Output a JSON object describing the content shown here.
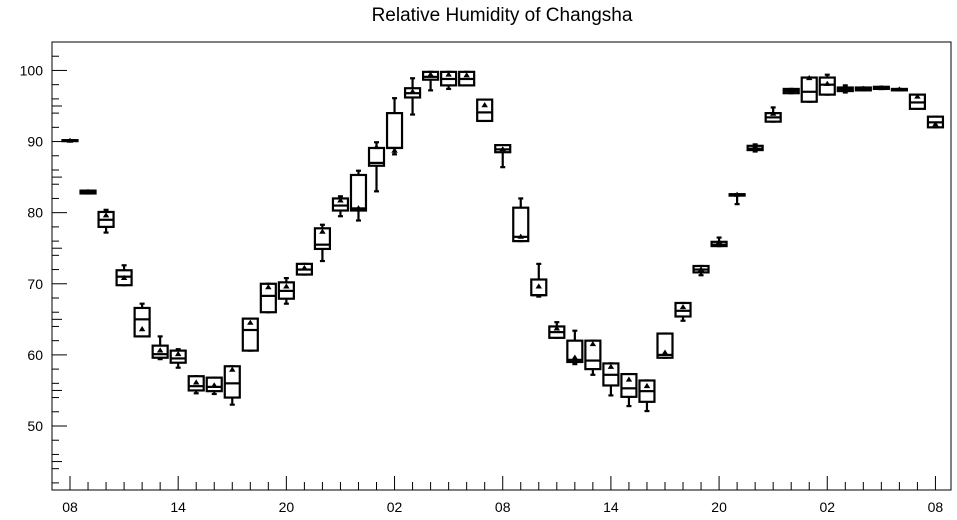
{
  "chart_data": {
    "type": "box",
    "title": "Relative Humidity of Changsha",
    "xlabel": "",
    "ylabel": "",
    "ylim": [
      41,
      104
    ],
    "yticks": [
      50,
      60,
      70,
      80,
      90,
      100
    ],
    "xticks": [
      {
        "label": "08",
        "index": 0
      },
      {
        "label": "14",
        "index": 6
      },
      {
        "label": "20",
        "index": 12
      },
      {
        "label": "02",
        "index": 18
      },
      {
        "label": "08",
        "index": 24
      },
      {
        "label": "14",
        "index": 30
      },
      {
        "label": "20",
        "index": 36
      },
      {
        "label": "02",
        "index": 42
      },
      {
        "label": "08",
        "index": 48
      }
    ],
    "grid": false,
    "legend": "none",
    "boxes": [
      {
        "index": 0,
        "min": 90.1,
        "q1": 90.1,
        "median": 90.1,
        "q3": 90.2,
        "max": 90.2,
        "mean": 90.1
      },
      {
        "index": 1,
        "min": 82.7,
        "q1": 82.7,
        "median": 82.9,
        "q3": 83.1,
        "max": 83.1,
        "mean": 82.9
      },
      {
        "index": 2,
        "min": 77.2,
        "q1": 78.0,
        "median": 79.0,
        "q3": 80.1,
        "max": 80.4,
        "mean": 79.6
      },
      {
        "index": 3,
        "min": 69.8,
        "q1": 69.8,
        "median": 71.0,
        "q3": 71.9,
        "max": 72.6,
        "mean": 70.8
      },
      {
        "index": 4,
        "min": 62.6,
        "q1": 62.6,
        "median": 65.0,
        "q3": 66.6,
        "max": 67.2,
        "mean": 63.6
      },
      {
        "index": 5,
        "min": 59.4,
        "q1": 59.6,
        "median": 60.1,
        "q3": 61.3,
        "max": 62.6,
        "mean": 60.6
      },
      {
        "index": 6,
        "min": 58.2,
        "q1": 58.9,
        "median": 59.5,
        "q3": 60.6,
        "max": 60.8,
        "mean": 60.1
      },
      {
        "index": 7,
        "min": 54.6,
        "q1": 55.0,
        "median": 55.6,
        "q3": 57.0,
        "max": 57.0,
        "mean": 56.1
      },
      {
        "index": 8,
        "min": 54.5,
        "q1": 54.9,
        "median": 55.5,
        "q3": 56.8,
        "max": 56.8,
        "mean": 55.7
      },
      {
        "index": 9,
        "min": 53.0,
        "q1": 54.0,
        "median": 56.0,
        "q3": 58.4,
        "max": 58.4,
        "mean": 57.9
      },
      {
        "index": 10,
        "min": 60.6,
        "q1": 60.6,
        "median": 63.5,
        "q3": 65.1,
        "max": 65.1,
        "mean": 64.5
      },
      {
        "index": 11,
        "min": 66.0,
        "q1": 66.0,
        "median": 68.3,
        "q3": 70.0,
        "max": 70.0,
        "mean": 69.5
      },
      {
        "index": 12,
        "min": 67.2,
        "q1": 67.9,
        "median": 69.0,
        "q3": 70.2,
        "max": 70.8,
        "mean": 69.6
      },
      {
        "index": 13,
        "min": 71.3,
        "q1": 71.3,
        "median": 72.0,
        "q3": 72.8,
        "max": 72.8,
        "mean": 72.2
      },
      {
        "index": 14,
        "min": 73.2,
        "q1": 74.9,
        "median": 75.5,
        "q3": 77.8,
        "max": 78.3,
        "mean": 77.3
      },
      {
        "index": 15,
        "min": 79.5,
        "q1": 80.3,
        "median": 81.0,
        "q3": 82.0,
        "max": 82.3,
        "mean": 81.7
      },
      {
        "index": 16,
        "min": 78.9,
        "q1": 80.3,
        "median": 80.6,
        "q3": 85.3,
        "max": 85.9,
        "mean": 80.6
      },
      {
        "index": 17,
        "min": 83.0,
        "q1": 86.6,
        "median": 87.0,
        "q3": 89.1,
        "max": 89.9,
        "mean": 89.2
      },
      {
        "index": 18,
        "min": 88.2,
        "q1": 89.1,
        "median": 89.1,
        "q3": 94.0,
        "max": 96.1,
        "mean": 88.7
      },
      {
        "index": 19,
        "min": 93.8,
        "q1": 96.2,
        "median": 96.8,
        "q3": 97.5,
        "max": 98.9,
        "mean": 97.0
      },
      {
        "index": 20,
        "min": 97.2,
        "q1": 98.7,
        "median": 99.1,
        "q3": 99.8,
        "max": 99.8,
        "mean": 99.4
      },
      {
        "index": 21,
        "min": 97.4,
        "q1": 97.9,
        "median": 98.8,
        "q3": 99.8,
        "max": 99.8,
        "mean": 99.4
      },
      {
        "index": 22,
        "min": 97.9,
        "q1": 97.9,
        "median": 98.8,
        "q3": 99.8,
        "max": 99.8,
        "mean": 99.3
      },
      {
        "index": 23,
        "min": 92.9,
        "q1": 92.9,
        "median": 94.1,
        "q3": 95.9,
        "max": 95.9,
        "mean": 95.1
      },
      {
        "index": 24,
        "min": 86.4,
        "q1": 88.5,
        "median": 88.9,
        "q3": 89.5,
        "max": 89.5,
        "mean": 88.9
      },
      {
        "index": 25,
        "min": 76.0,
        "q1": 76.0,
        "median": 76.6,
        "q3": 80.7,
        "max": 82.0,
        "mean": 76.6
      },
      {
        "index": 26,
        "min": 68.2,
        "q1": 68.4,
        "median": 68.4,
        "q3": 70.6,
        "max": 72.8,
        "mean": 69.6
      },
      {
        "index": 27,
        "min": 62.4,
        "q1": 62.4,
        "median": 63.2,
        "q3": 64.0,
        "max": 64.6,
        "mean": 63.7
      },
      {
        "index": 28,
        "min": 58.7,
        "q1": 59.0,
        "median": 59.3,
        "q3": 62.0,
        "max": 63.4,
        "mean": 59.6
      },
      {
        "index": 29,
        "min": 57.2,
        "q1": 58.0,
        "median": 59.2,
        "q3": 62.0,
        "max": 62.0,
        "mean": 61.5
      },
      {
        "index": 30,
        "min": 54.3,
        "q1": 55.7,
        "median": 57.2,
        "q3": 58.8,
        "max": 58.8,
        "mean": 58.3
      },
      {
        "index": 31,
        "min": 52.8,
        "q1": 54.1,
        "median": 55.3,
        "q3": 57.3,
        "max": 57.3,
        "mean": 56.5
      },
      {
        "index": 32,
        "min": 52.1,
        "q1": 53.4,
        "median": 54.9,
        "q3": 56.4,
        "max": 56.4,
        "mean": 55.6
      },
      {
        "index": 33,
        "min": 59.6,
        "q1": 59.6,
        "median": 60.0,
        "q3": 63.0,
        "max": 63.0,
        "mean": 60.3
      },
      {
        "index": 34,
        "min": 64.8,
        "q1": 65.4,
        "median": 66.2,
        "q3": 67.3,
        "max": 67.3,
        "mean": 66.7
      },
      {
        "index": 35,
        "min": 71.2,
        "q1": 71.6,
        "median": 72.0,
        "q3": 72.5,
        "max": 72.5,
        "mean": 72.0
      },
      {
        "index": 36,
        "min": 75.3,
        "q1": 75.3,
        "median": 75.5,
        "q3": 75.9,
        "max": 76.5,
        "mean": 75.9
      },
      {
        "index": 37,
        "min": 81.2,
        "q1": 82.4,
        "median": 82.5,
        "q3": 82.6,
        "max": 82.6,
        "mean": 82.5
      },
      {
        "index": 38,
        "min": 88.6,
        "q1": 88.8,
        "median": 89.0,
        "q3": 89.4,
        "max": 89.6,
        "mean": 89.3
      },
      {
        "index": 39,
        "min": 92.8,
        "q1": 92.8,
        "median": 93.4,
        "q3": 94.0,
        "max": 94.8,
        "mean": 93.9
      },
      {
        "index": 40,
        "min": 96.8,
        "q1": 96.8,
        "median": 97.1,
        "q3": 97.4,
        "max": 97.4,
        "mean": 97.1
      },
      {
        "index": 41,
        "min": 95.6,
        "q1": 95.6,
        "median": 97.0,
        "q3": 99.0,
        "max": 99.0,
        "mean": 98.9
      },
      {
        "index": 42,
        "min": 96.6,
        "q1": 96.6,
        "median": 98.0,
        "q3": 99.0,
        "max": 99.4,
        "mean": 98.1
      },
      {
        "index": 43,
        "min": 96.9,
        "q1": 97.1,
        "median": 97.4,
        "q3": 97.6,
        "max": 97.9,
        "mean": 97.6
      },
      {
        "index": 44,
        "min": 97.2,
        "q1": 97.2,
        "median": 97.4,
        "q3": 97.6,
        "max": 97.6,
        "mean": 97.4
      },
      {
        "index": 45,
        "min": 97.4,
        "q1": 97.4,
        "median": 97.5,
        "q3": 97.7,
        "max": 97.7,
        "mean": 97.5
      },
      {
        "index": 46,
        "min": 97.2,
        "q1": 97.2,
        "median": 97.3,
        "q3": 97.4,
        "max": 97.4,
        "mean": 97.3
      },
      {
        "index": 47,
        "min": 94.6,
        "q1": 94.6,
        "median": 95.5,
        "q3": 96.6,
        "max": 96.6,
        "mean": 96.3
      },
      {
        "index": 48,
        "min": 92.0,
        "q1": 92.0,
        "median": 92.7,
        "q3": 93.5,
        "max": 93.5,
        "mean": 92.4
      }
    ]
  }
}
